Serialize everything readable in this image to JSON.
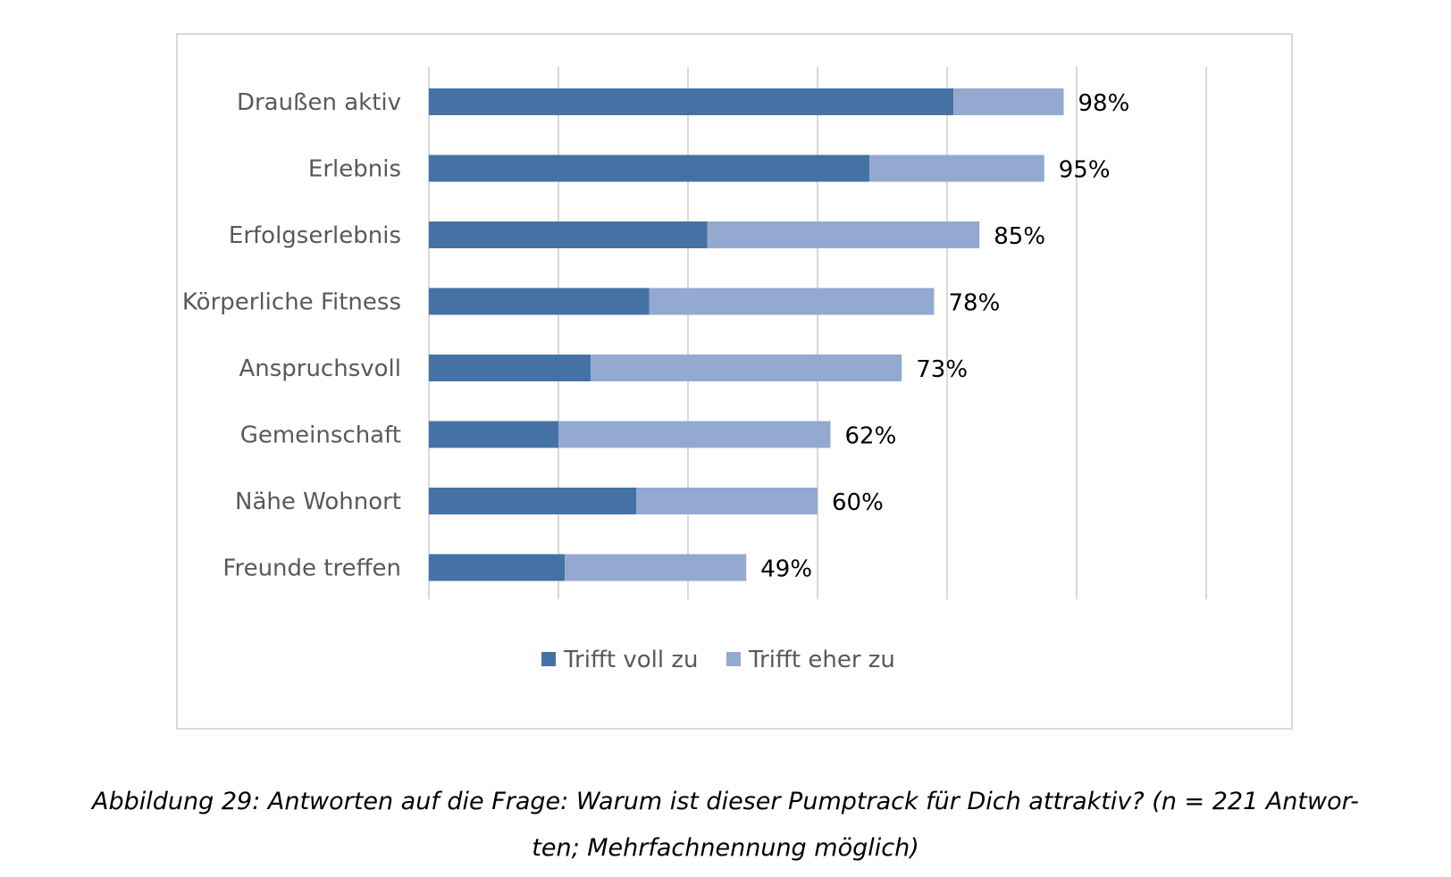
{
  "chart_data": {
    "type": "bar",
    "orientation": "horizontal",
    "stacked": true,
    "categories": [
      "Draußen aktiv",
      "Erlebnis",
      "Erfolgserlebnis",
      "Körperliche Fitness",
      "Anspruchsvoll",
      "Gemeinschaft",
      "Nähe Wohnort",
      "Freunde treffen"
    ],
    "series": [
      {
        "name": "Trifft voll zu",
        "color": "#4472a4",
        "values": [
          81,
          68,
          43,
          34,
          25,
          20,
          32,
          21
        ]
      },
      {
        "name": "Trifft eher zu",
        "color": "#93a9d0",
        "values": [
          17,
          27,
          42,
          44,
          48,
          42,
          28,
          28
        ]
      }
    ],
    "totals_labels": [
      "98%",
      "95%",
      "85%",
      "78%",
      "73%",
      "62%",
      "60%",
      "49%"
    ],
    "xlim": [
      0,
      120
    ],
    "x_gridline_step": 20,
    "grid": true,
    "legend_position": "bottom"
  },
  "caption": {
    "line1": "Abbildung 29: Antworten auf die Frage: Warum ist dieser Pumptrack für Dich attraktiv? (n = 221 Antwor-",
    "line2": "ten; Mehrfachnennung möglich)"
  }
}
